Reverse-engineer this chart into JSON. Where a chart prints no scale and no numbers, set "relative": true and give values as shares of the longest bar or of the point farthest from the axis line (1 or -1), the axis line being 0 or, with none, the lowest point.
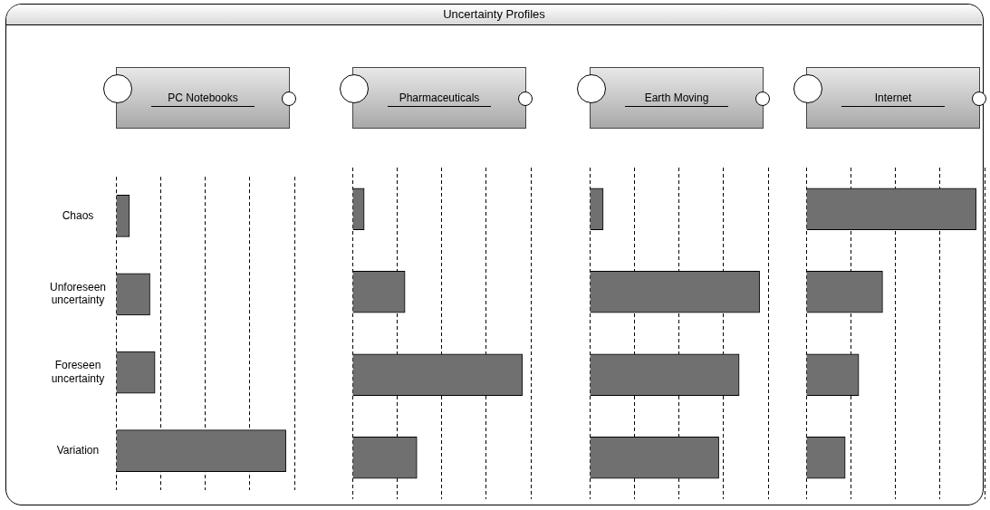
{
  "chart_data": [
    {
      "type": "bar",
      "orientation": "horizontal",
      "relative": true,
      "grid": "x",
      "title": "PC Notebooks",
      "annotations": [
        "Uncertainty Profiles"
      ],
      "categories": [
        "Chaos",
        "Unforeseen uncertainty",
        "Foreseen uncertainty",
        "Variation"
      ],
      "series": [
        {
          "color": "#707070",
          "values": [
            0.08,
            0.2,
            0.23,
            1
          ]
        }
      ]
    },
    {
      "type": "bar",
      "orientation": "horizontal",
      "relative": true,
      "grid": "x",
      "title": "Pharmaceuticals",
      "tick_labels": false,
      "categories": [
        null,
        null,
        null,
        null
      ],
      "series": [
        {
          "color": "#707070",
          "values": [
            0.07,
            0.31,
            1,
            0.38
          ]
        }
      ]
    },
    {
      "type": "bar",
      "orientation": "horizontal",
      "relative": true,
      "grid": "x",
      "title": "Earth Moving",
      "tick_labels": false,
      "categories": [
        null,
        null,
        null,
        null
      ],
      "series": [
        {
          "color": "#707070",
          "values": [
            0.08,
            1,
            0.88,
            0.76
          ]
        }
      ]
    },
    {
      "type": "bar",
      "orientation": "horizontal",
      "relative": true,
      "grid": "x",
      "title": "Internet",
      "tick_labels": false,
      "categories": [
        null,
        null,
        null,
        null
      ],
      "series": [
        {
          "color": "#707070",
          "values": [
            1,
            0.45,
            0.31,
            0.23
          ]
        }
      ]
    }
  ]
}
